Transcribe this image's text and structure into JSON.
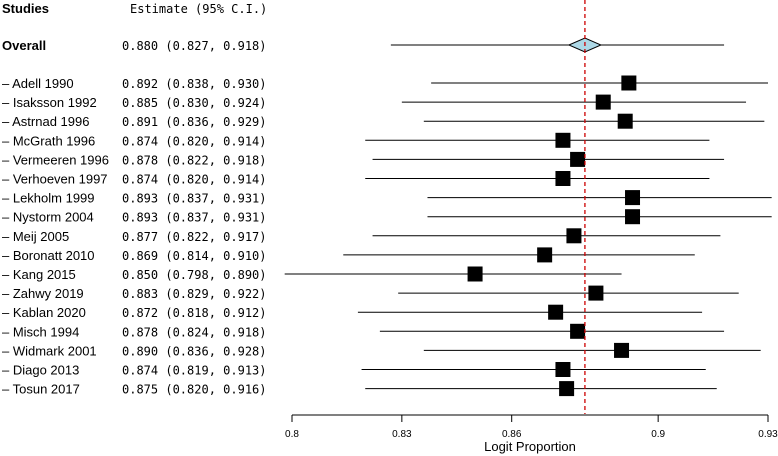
{
  "chart_data": {
    "type": "forest",
    "header_studies": "Studies",
    "header_estimate": "Estimate (95% C.I.)",
    "overall": {
      "label": "Overall",
      "estimate_text": "0.880 (0.827, 0.918)",
      "estimate": 0.88,
      "lower": 0.827,
      "upper": 0.918
    },
    "studies": [
      {
        "label": "– Adell 1990",
        "estimate_text": "0.892 (0.838, 0.930)",
        "estimate": 0.892,
        "lower": 0.838,
        "upper": 0.93
      },
      {
        "label": "– Isaksson 1992",
        "estimate_text": "0.885 (0.830, 0.924)",
        "estimate": 0.885,
        "lower": 0.83,
        "upper": 0.924
      },
      {
        "label": "– Astrnad 1996",
        "estimate_text": "0.891 (0.836, 0.929)",
        "estimate": 0.891,
        "lower": 0.836,
        "upper": 0.929
      },
      {
        "label": "– McGrath 1996",
        "estimate_text": "0.874 (0.820, 0.914)",
        "estimate": 0.874,
        "lower": 0.82,
        "upper": 0.914
      },
      {
        "label": "– Vermeeren 1996",
        "estimate_text": "0.878 (0.822, 0.918)",
        "estimate": 0.878,
        "lower": 0.822,
        "upper": 0.918
      },
      {
        "label": "– Verhoeven 1997",
        "estimate_text": "0.874 (0.820, 0.914)",
        "estimate": 0.874,
        "lower": 0.82,
        "upper": 0.914
      },
      {
        "label": "– Lekholm 1999",
        "estimate_text": "0.893 (0.837, 0.931)",
        "estimate": 0.893,
        "lower": 0.837,
        "upper": 0.931
      },
      {
        "label": "– Nystorm 2004",
        "estimate_text": "0.893 (0.837, 0.931)",
        "estimate": 0.893,
        "lower": 0.837,
        "upper": 0.931
      },
      {
        "label": "– Meij 2005",
        "estimate_text": "0.877 (0.822, 0.917)",
        "estimate": 0.877,
        "lower": 0.822,
        "upper": 0.917
      },
      {
        "label": "– Boronatt 2010",
        "estimate_text": "0.869 (0.814, 0.910)",
        "estimate": 0.869,
        "lower": 0.814,
        "upper": 0.91
      },
      {
        "label": "– Kang 2015",
        "estimate_text": "0.850 (0.798, 0.890)",
        "estimate": 0.85,
        "lower": 0.798,
        "upper": 0.89
      },
      {
        "label": "– Zahwy 2019",
        "estimate_text": "0.883 (0.829, 0.922)",
        "estimate": 0.883,
        "lower": 0.829,
        "upper": 0.922
      },
      {
        "label": "– Kablan 2020",
        "estimate_text": "0.872 (0.818, 0.912)",
        "estimate": 0.872,
        "lower": 0.818,
        "upper": 0.912
      },
      {
        "label": "– Misch 1994",
        "estimate_text": "0.878 (0.824, 0.918)",
        "estimate": 0.878,
        "lower": 0.824,
        "upper": 0.918
      },
      {
        "label": "– Widmark 2001",
        "estimate_text": "0.890 (0.836, 0.928)",
        "estimate": 0.89,
        "lower": 0.836,
        "upper": 0.928
      },
      {
        "label": "– Diago 2013",
        "estimate_text": "0.874 (0.819, 0.913)",
        "estimate": 0.874,
        "lower": 0.819,
        "upper": 0.913
      },
      {
        "label": "– Tosun 2017",
        "estimate_text": "0.875 (0.820, 0.916)",
        "estimate": 0.875,
        "lower": 0.82,
        "upper": 0.916
      }
    ],
    "x_ticks": [
      {
        "value": 0.8,
        "label": "0.8"
      },
      {
        "value": 0.83,
        "label": "0.83"
      },
      {
        "value": 0.86,
        "label": "0.86"
      },
      {
        "value": 0.9,
        "label": "0.9"
      },
      {
        "value": 0.93,
        "label": "0.93"
      }
    ],
    "xlim": [
      0.8,
      0.93
    ],
    "xlabel": "Logit Proportion",
    "reference_line_value": 0.88,
    "colors": {
      "diamond_fill": "#add8e6",
      "reference_line": "#cc0000",
      "marker": "#000000",
      "text": "#000000"
    }
  }
}
